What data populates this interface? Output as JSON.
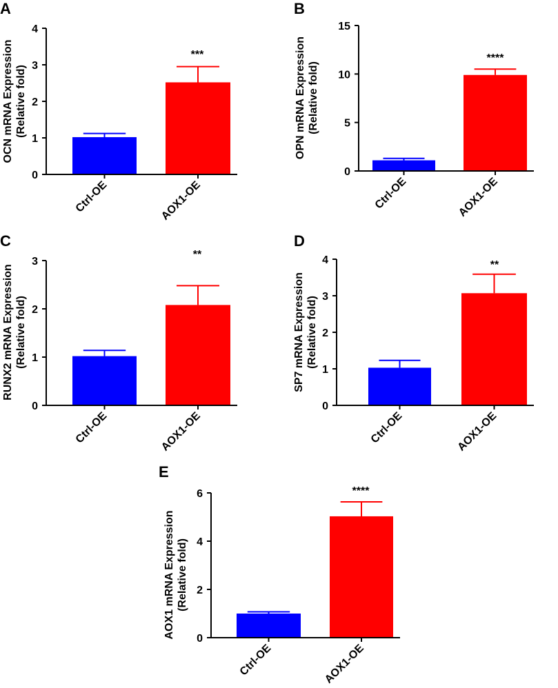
{
  "figure": {
    "panels": [
      {
        "letter": "A",
        "sig": "***",
        "ylabel_line1": "OCN mRNA Expression",
        "ylabel_line2": "(Relative fold)"
      },
      {
        "letter": "B",
        "sig": "****",
        "ylabel_line1": "OPN mRNA Expression",
        "ylabel_line2": "(Relative fold)"
      },
      {
        "letter": "C",
        "sig": "**",
        "ylabel_line1": "RUNX2 mRNA Expression",
        "ylabel_line2": "(Relative fold)"
      },
      {
        "letter": "D",
        "sig": "**",
        "ylabel_line1": "SP7 mRNA Expression",
        "ylabel_line2": "(Relative fold)"
      },
      {
        "letter": "E",
        "sig": "****",
        "ylabel_line1": "AOX1 mRNA Expression",
        "ylabel_line2": "(Relative fold)"
      }
    ]
  },
  "colors": {
    "ctrl": "#0000FF",
    "aox1": "#FF0000",
    "axis": "#000000"
  },
  "chart_data": [
    {
      "type": "bar",
      "panel": "A",
      "categories": [
        "Ctrl-OE",
        "AOX1-OE"
      ],
      "values": [
        1.02,
        2.52
      ],
      "errors": [
        0.1,
        0.43
      ],
      "ylabel": "OCN mRNA Expression (Relative fold)",
      "ylim": [
        0,
        4
      ],
      "yticks": [
        0,
        1,
        2,
        3,
        4
      ],
      "significance": "***",
      "grid": false
    },
    {
      "type": "bar",
      "panel": "B",
      "categories": [
        "Ctrl-OE",
        "AOX1-OE"
      ],
      "values": [
        1.1,
        9.9
      ],
      "errors": [
        0.2,
        0.6
      ],
      "ylabel": "OPN mRNA Expression (Relative fold)",
      "ylim": [
        0,
        15
      ],
      "yticks": [
        0,
        5,
        10,
        15
      ],
      "significance": "****",
      "grid": false
    },
    {
      "type": "bar",
      "panel": "C",
      "categories": [
        "Ctrl-OE",
        "AOX1-OE"
      ],
      "values": [
        1.02,
        2.08
      ],
      "errors": [
        0.12,
        0.4
      ],
      "ylabel": "RUNX2 mRNA Expression (Relative fold)",
      "ylim": [
        0,
        3
      ],
      "yticks": [
        0,
        1,
        2,
        3
      ],
      "significance": "**",
      "grid": false
    },
    {
      "type": "bar",
      "panel": "D",
      "categories": [
        "Ctrl-OE",
        "AOX1-OE"
      ],
      "values": [
        1.03,
        3.07
      ],
      "errors": [
        0.2,
        0.52
      ],
      "ylabel": "SP7 mRNA Expression (Relative fold)",
      "ylim": [
        0,
        4
      ],
      "yticks": [
        0,
        1,
        2,
        3,
        4
      ],
      "significance": "**",
      "grid": false
    },
    {
      "type": "bar",
      "panel": "E",
      "categories": [
        "Ctrl-OE",
        "AOX1-OE"
      ],
      "values": [
        1.0,
        5.03
      ],
      "errors": [
        0.07,
        0.6
      ],
      "ylabel": "AOX1 mRNA Expression (Relative fold)",
      "ylim": [
        0,
        6
      ],
      "yticks": [
        0,
        2,
        4,
        6
      ],
      "significance": "****",
      "grid": false
    }
  ]
}
